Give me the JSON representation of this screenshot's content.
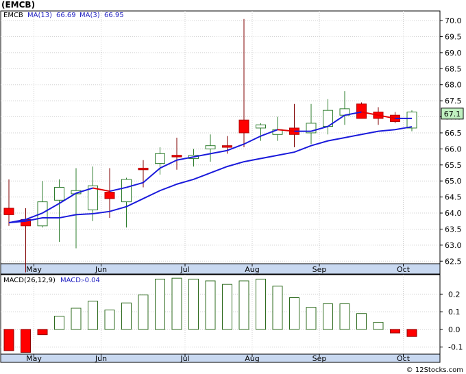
{
  "title": "(EMCB)",
  "watermark": "© 12Stocks.com",
  "colors": {
    "up_candle": "#2e7d2e",
    "down_candle": "#ff0000",
    "ma13": "#1a1adb",
    "ma3_up": "#1a1adb",
    "ma3_down": "#e00000",
    "macd_bar": "#2e6b1e",
    "macd_neg": "#ff0000",
    "axis_band": "#c8d8f0",
    "last_price_box": "#c0f0c0"
  },
  "chart_data": [
    {
      "type": "candlestick",
      "legend": {
        "symbol": "EMCB",
        "ma13_label": "MA(13)",
        "ma13_value": "66.69",
        "ma3_label": "MA(3)",
        "ma3_value": "66.95"
      },
      "ylim": [
        62.1,
        70.3
      ],
      "y_ticks": [
        "62.5",
        "63.0",
        "63.5",
        "64.0",
        "64.5",
        "65.0",
        "65.5",
        "66.0",
        "66.5",
        "67.0",
        "67.5",
        "68.0",
        "68.5",
        "69.0",
        "69.5",
        "70.0"
      ],
      "x_ticks": [
        {
          "label": "May",
          "index": 1
        },
        {
          "label": "Jun",
          "index": 5
        },
        {
          "label": "Jul",
          "index": 10
        },
        {
          "label": "Aug",
          "index": 14
        },
        {
          "label": "Sep",
          "index": 18
        },
        {
          "label": "Oct",
          "index": 23
        }
      ],
      "last_price": "67.1",
      "candles": [
        {
          "o": 64.15,
          "h": 65.05,
          "l": 63.6,
          "c": 63.95
        },
        {
          "o": 63.8,
          "h": 64.15,
          "l": 62.15,
          "c": 63.6
        },
        {
          "o": 63.6,
          "h": 65.0,
          "l": 63.55,
          "c": 64.35
        },
        {
          "o": 64.4,
          "h": 65.05,
          "l": 63.1,
          "c": 64.8
        },
        {
          "o": 64.6,
          "h": 65.4,
          "l": 62.9,
          "c": 64.7
        },
        {
          "o": 64.1,
          "h": 65.45,
          "l": 63.75,
          "c": 64.85
        },
        {
          "o": 64.65,
          "h": 65.4,
          "l": 63.85,
          "c": 64.45
        },
        {
          "o": 64.35,
          "h": 65.1,
          "l": 63.55,
          "c": 65.05
        },
        {
          "o": 65.4,
          "h": 65.65,
          "l": 64.8,
          "c": 65.35
        },
        {
          "o": 65.55,
          "h": 66.05,
          "l": 65.2,
          "c": 65.85
        },
        {
          "o": 65.8,
          "h": 66.35,
          "l": 65.35,
          "c": 65.75
        },
        {
          "o": 65.7,
          "h": 66.0,
          "l": 65.45,
          "c": 65.8
        },
        {
          "o": 66.0,
          "h": 66.45,
          "l": 65.6,
          "c": 66.1
        },
        {
          "o": 66.1,
          "h": 66.4,
          "l": 65.85,
          "c": 66.05
        },
        {
          "o": 66.9,
          "h": 70.05,
          "l": 66.05,
          "c": 66.5
        },
        {
          "o": 66.65,
          "h": 66.8,
          "l": 66.25,
          "c": 66.75
        },
        {
          "o": 66.45,
          "h": 67.0,
          "l": 66.25,
          "c": 66.6
        },
        {
          "o": 66.65,
          "h": 67.4,
          "l": 66.05,
          "c": 66.45
        },
        {
          "o": 66.5,
          "h": 67.4,
          "l": 66.15,
          "c": 66.8
        },
        {
          "o": 66.7,
          "h": 67.55,
          "l": 66.45,
          "c": 67.2
        },
        {
          "o": 67.05,
          "h": 67.8,
          "l": 66.75,
          "c": 67.25
        },
        {
          "o": 67.4,
          "h": 67.45,
          "l": 66.95,
          "c": 66.95
        },
        {
          "o": 67.15,
          "h": 67.3,
          "l": 66.75,
          "c": 66.95
        },
        {
          "o": 67.05,
          "h": 67.15,
          "l": 66.8,
          "c": 66.85
        },
        {
          "o": 66.65,
          "h": 67.2,
          "l": 66.55,
          "c": 67.15
        }
      ],
      "ma13": [
        63.7,
        63.75,
        63.85,
        63.85,
        63.95,
        63.98,
        64.05,
        64.2,
        64.45,
        64.7,
        64.9,
        65.05,
        65.25,
        65.45,
        65.6,
        65.7,
        65.8,
        65.9,
        66.1,
        66.25,
        66.35,
        66.45,
        66.55,
        66.6,
        66.69
      ],
      "ma3": [
        63.7,
        63.8,
        64.0,
        64.3,
        64.62,
        64.78,
        64.68,
        64.8,
        64.95,
        65.4,
        65.65,
        65.75,
        65.85,
        65.95,
        66.15,
        66.4,
        66.6,
        66.55,
        66.55,
        66.7,
        67.05,
        67.15,
        67.05,
        66.95,
        66.95
      ]
    },
    {
      "type": "bar",
      "legend": {
        "label": "MACD(26,12,9)",
        "value_label": "MACD:",
        "value": "-0.04"
      },
      "ylim": [
        -0.14,
        0.31
      ],
      "y_ticks": [
        "-0.1",
        "0.0",
        "0.1",
        "0.2"
      ],
      "values": [
        -0.12,
        -0.13,
        -0.03,
        0.075,
        0.12,
        0.16,
        0.11,
        0.15,
        0.195,
        0.285,
        0.29,
        0.285,
        0.275,
        0.255,
        0.275,
        0.285,
        0.245,
        0.18,
        0.125,
        0.145,
        0.145,
        0.09,
        0.04,
        -0.02,
        -0.04
      ]
    }
  ]
}
